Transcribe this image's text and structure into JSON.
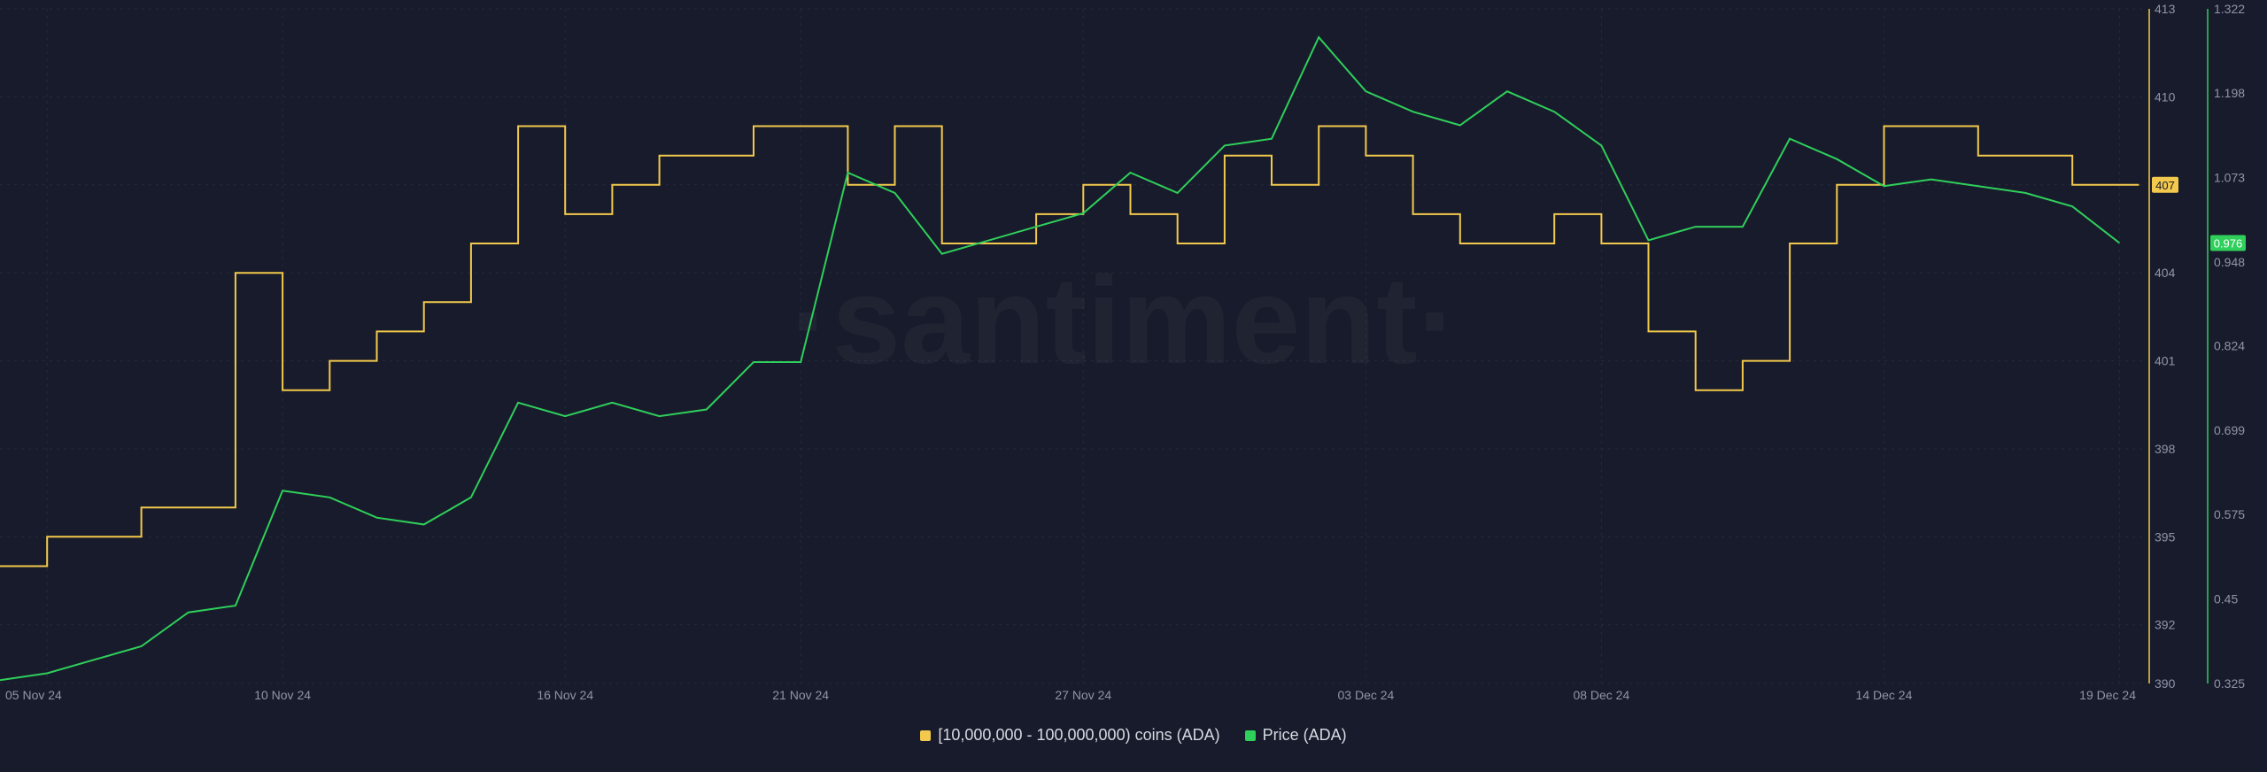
{
  "watermark": "·santiment·",
  "colors": {
    "background": "#181b2b",
    "grid": "#262a3d",
    "axis_text": "#8f95a8",
    "holders_line": "#f2c94c",
    "price_line": "#2fcf5b",
    "holders_badge_text": "#181b2b",
    "price_badge_text": "#ffffff"
  },
  "chart_data": {
    "type": "line",
    "x_tick_labels": [
      "05 Nov 24",
      "10 Nov 24",
      "16 Nov 24",
      "21 Nov 24",
      "27 Nov 24",
      "03 Dec 24",
      "08 Dec 24",
      "14 Dec 24",
      "19 Dec 24"
    ],
    "left_axis": {
      "ticks": [
        390,
        392,
        395,
        398,
        401,
        404,
        407,
        410,
        413
      ],
      "range": [
        390,
        413
      ],
      "series": "holders"
    },
    "right_axis": {
      "ticks": [
        0.325,
        0.45,
        0.575,
        0.699,
        0.824,
        0.948,
        1.073,
        1.198,
        1.322
      ],
      "range": [
        0.325,
        1.322
      ],
      "series": "price"
    },
    "grid": true,
    "legend_position": "bottom-center",
    "series": [
      {
        "key": "holders",
        "name": "[10,000,000 - 100,000,000) coins (ADA)",
        "axis": "left",
        "step": true,
        "last_value_label": "407",
        "x": [
          "2024-11-04",
          "2024-11-05",
          "2024-11-06",
          "2024-11-07",
          "2024-11-08",
          "2024-11-09",
          "2024-11-10",
          "2024-11-11",
          "2024-11-12",
          "2024-11-13",
          "2024-11-14",
          "2024-11-15",
          "2024-11-16",
          "2024-11-17",
          "2024-11-18",
          "2024-11-19",
          "2024-11-20",
          "2024-11-21",
          "2024-11-22",
          "2024-11-23",
          "2024-11-24",
          "2024-11-25",
          "2024-11-26",
          "2024-11-27",
          "2024-11-28",
          "2024-11-29",
          "2024-11-30",
          "2024-12-01",
          "2024-12-02",
          "2024-12-03",
          "2024-12-04",
          "2024-12-05",
          "2024-12-06",
          "2024-12-07",
          "2024-12-08",
          "2024-12-09",
          "2024-12-10",
          "2024-12-11",
          "2024-12-12",
          "2024-12-13",
          "2024-12-14",
          "2024-12-15",
          "2024-12-16",
          "2024-12-17",
          "2024-12-18",
          "2024-12-19"
        ],
        "y": [
          394,
          395,
          395,
          396,
          396,
          404,
          400,
          401,
          402,
          403,
          405,
          409,
          406,
          407,
          408,
          408,
          409,
          409,
          407,
          409,
          405,
          405,
          406,
          407,
          406,
          405,
          408,
          407,
          409,
          408,
          406,
          405,
          405,
          406,
          405,
          402,
          400,
          401,
          405,
          407,
          409,
          409,
          408,
          408,
          407,
          407
        ]
      },
      {
        "key": "price",
        "name": "Price (ADA)",
        "axis": "right",
        "step": false,
        "last_value_label": "0.976",
        "x": [
          "2024-11-04",
          "2024-11-05",
          "2024-11-06",
          "2024-11-07",
          "2024-11-08",
          "2024-11-09",
          "2024-11-10",
          "2024-11-11",
          "2024-11-12",
          "2024-11-13",
          "2024-11-14",
          "2024-11-15",
          "2024-11-16",
          "2024-11-17",
          "2024-11-18",
          "2024-11-19",
          "2024-11-20",
          "2024-11-21",
          "2024-11-22",
          "2024-11-23",
          "2024-11-24",
          "2024-11-25",
          "2024-11-26",
          "2024-11-27",
          "2024-11-28",
          "2024-11-29",
          "2024-11-30",
          "2024-12-01",
          "2024-12-02",
          "2024-12-03",
          "2024-12-04",
          "2024-12-05",
          "2024-12-06",
          "2024-12-07",
          "2024-12-08",
          "2024-12-09",
          "2024-12-10",
          "2024-12-11",
          "2024-12-12",
          "2024-12-13",
          "2024-12-14",
          "2024-12-15",
          "2024-12-16",
          "2024-12-17",
          "2024-12-18",
          "2024-12-19"
        ],
        "y": [
          0.33,
          0.34,
          0.36,
          0.38,
          0.43,
          0.44,
          0.61,
          0.6,
          0.57,
          0.56,
          0.6,
          0.74,
          0.72,
          0.74,
          0.72,
          0.73,
          0.8,
          0.8,
          1.08,
          1.05,
          0.96,
          0.98,
          1.0,
          1.02,
          1.08,
          1.05,
          1.12,
          1.13,
          1.28,
          1.2,
          1.17,
          1.15,
          1.2,
          1.17,
          1.12,
          0.98,
          1.0,
          1.0,
          1.13,
          1.1,
          1.06,
          1.07,
          1.06,
          1.05,
          1.03,
          0.976
        ]
      }
    ]
  }
}
